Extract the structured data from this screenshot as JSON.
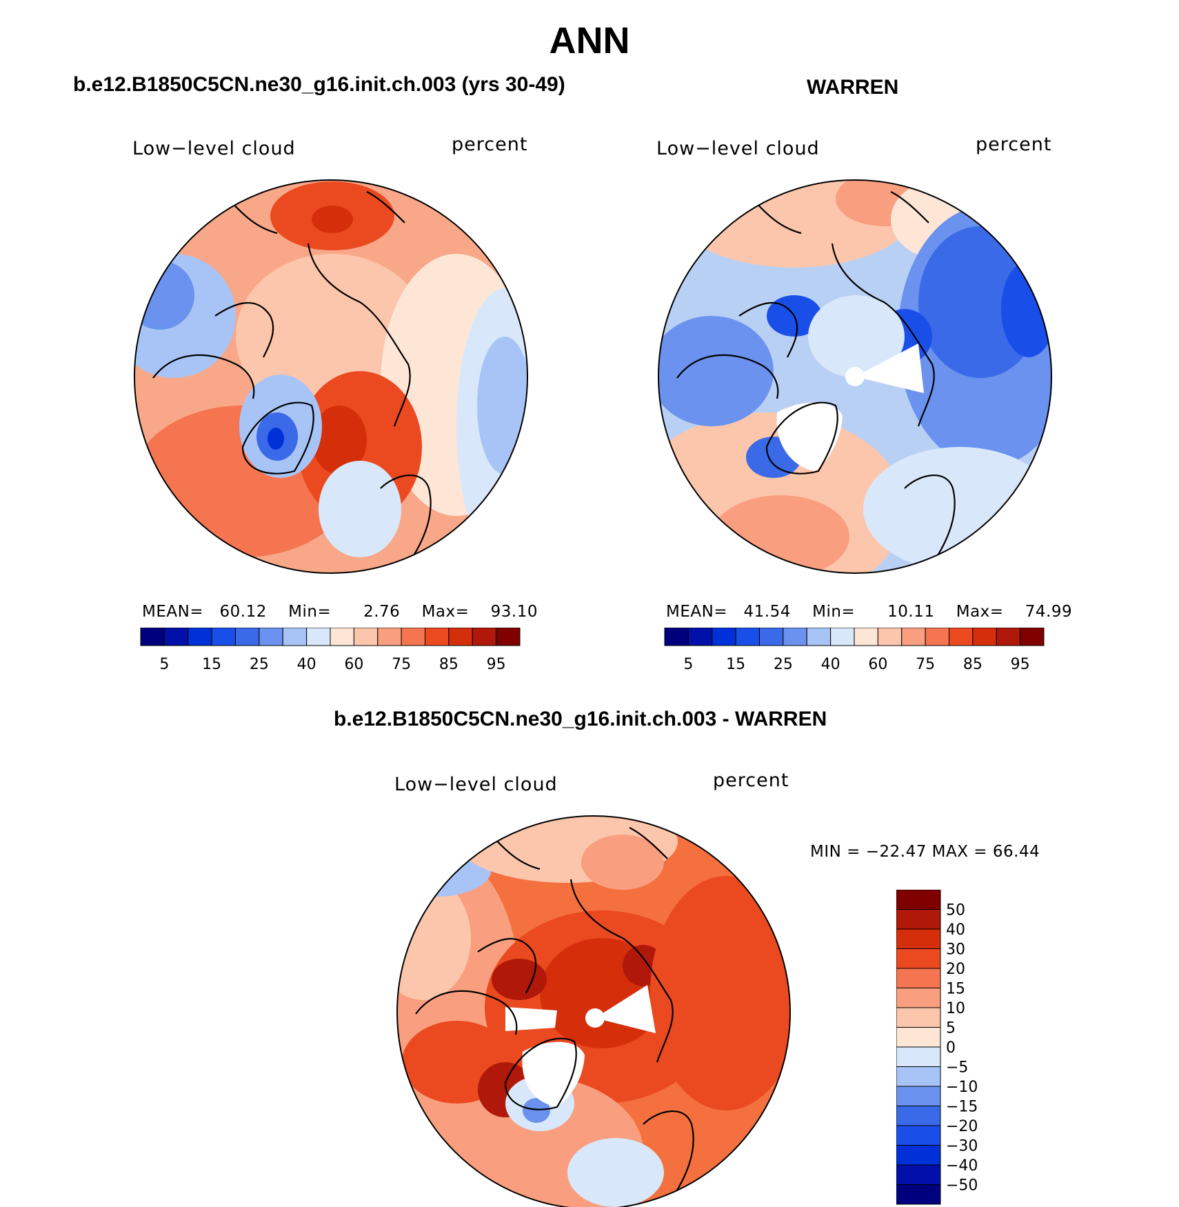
{
  "figure": {
    "title": "ANN"
  },
  "panels": [
    {
      "id": "model",
      "title": "b.e12.B1850C5CN.ne30_g16.init.ch.003 (yrs 30-49)",
      "left_label": "Low−level cloud",
      "right_label": "percent",
      "stats": {
        "mean_label": "MEAN=",
        "mean": "60.12",
        "min_label": "Min=",
        "min": "2.76",
        "max_label": "Max=",
        "max": "93.10"
      }
    },
    {
      "id": "obs",
      "title": "WARREN",
      "left_label": "Low−level cloud",
      "right_label": "percent",
      "stats": {
        "mean_label": "MEAN=",
        "mean": "41.54",
        "min_label": "Min=",
        "min": "10.11",
        "max_label": "Max=",
        "max": "74.99"
      }
    },
    {
      "id": "diff",
      "title": "b.e12.B1850C5CN.ne30_g16.init.ch.003 - WARREN",
      "left_label": "Low−level cloud",
      "right_label": "percent",
      "stats_text": "MIN = −22.47 MAX =   66.44"
    }
  ],
  "colorbars": {
    "absolute": {
      "colors": [
        "#00007f",
        "#0010a8",
        "#0030d8",
        "#1a4ee8",
        "#3a6ae8",
        "#6a92ee",
        "#a8c4f6",
        "#d8e8fa",
        "#fde6d6",
        "#fcc6ac",
        "#f99f80",
        "#f57550",
        "#eb4a20",
        "#d42f0a",
        "#b0180a",
        "#800000"
      ],
      "tick_labels": [
        "5",
        "15",
        "25",
        "40",
        "60",
        "75",
        "85",
        "95"
      ]
    },
    "difference": {
      "colors": [
        "#800000",
        "#b0180a",
        "#d42f0a",
        "#eb4a20",
        "#f57550",
        "#f99f80",
        "#fcc6ac",
        "#fde6d6",
        "#d8e8fa",
        "#a8c4f6",
        "#6a92ee",
        "#3a6ae8",
        "#1a4ee8",
        "#0030d8",
        "#0010a8",
        "#00007f"
      ],
      "tick_labels": [
        "50",
        "40",
        "30",
        "20",
        "15",
        "10",
        "5",
        "0",
        "−5",
        "−10",
        "−15",
        "−20",
        "−30",
        "−40",
        "−50"
      ]
    }
  },
  "map_fill": {
    "model": "#f8a889",
    "obs": "#b9d0f5",
    "diff": "#f4703f"
  }
}
